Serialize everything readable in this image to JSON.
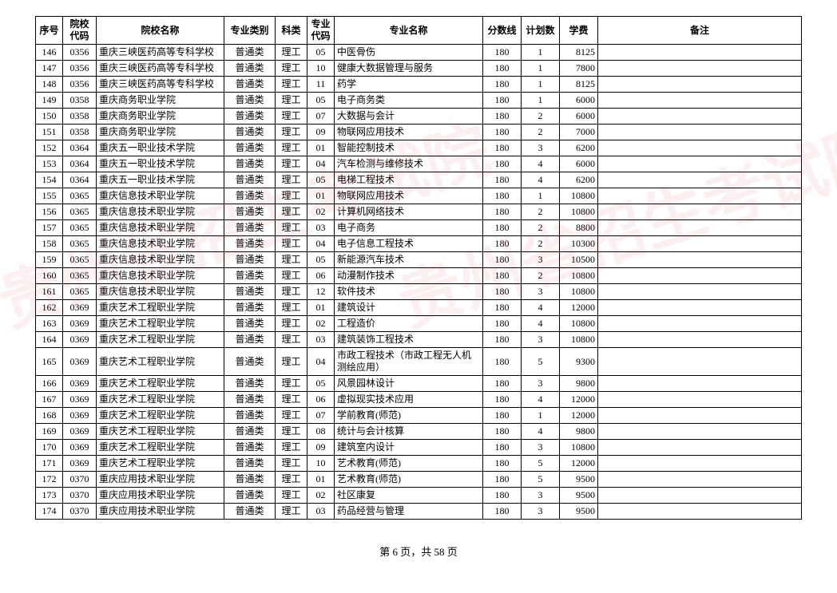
{
  "table": {
    "columns": [
      {
        "key": "seq",
        "label": "序号",
        "class": "col-seq",
        "align": "c"
      },
      {
        "key": "scode",
        "label": "院校\n代码",
        "class": "col-scode",
        "align": "c"
      },
      {
        "key": "sname",
        "label": "院校名称",
        "class": "col-sname",
        "align": "l"
      },
      {
        "key": "cat",
        "label": "专业类别",
        "class": "col-cat",
        "align": "c"
      },
      {
        "key": "sci",
        "label": "科类",
        "class": "col-sci",
        "align": "c"
      },
      {
        "key": "mcode",
        "label": "专业\n代码",
        "class": "col-mcode",
        "align": "c"
      },
      {
        "key": "mname",
        "label": "专业名称",
        "class": "col-mname",
        "align": "l"
      },
      {
        "key": "score",
        "label": "分数线",
        "class": "col-score",
        "align": "c"
      },
      {
        "key": "plan",
        "label": "计划数",
        "class": "col-plan",
        "align": "c"
      },
      {
        "key": "fee",
        "label": "学费",
        "class": "col-fee",
        "align": "r"
      },
      {
        "key": "note",
        "label": "备注",
        "class": "col-note",
        "align": "l"
      }
    ],
    "rows": [
      [
        "146",
        "0356",
        "重庆三峡医药高等专科学校",
        "普通类",
        "理工",
        "05",
        "中医骨伤",
        "180",
        "1",
        "8125",
        ""
      ],
      [
        "147",
        "0356",
        "重庆三峡医药高等专科学校",
        "普通类",
        "理工",
        "10",
        "健康大数据管理与服务",
        "180",
        "1",
        "7800",
        ""
      ],
      [
        "148",
        "0356",
        "重庆三峡医药高等专科学校",
        "普通类",
        "理工",
        "11",
        "药学",
        "180",
        "1",
        "8125",
        ""
      ],
      [
        "149",
        "0358",
        "重庆商务职业学院",
        "普通类",
        "理工",
        "05",
        "电子商务类",
        "180",
        "1",
        "6000",
        ""
      ],
      [
        "150",
        "0358",
        "重庆商务职业学院",
        "普通类",
        "理工",
        "07",
        "大数据与会计",
        "180",
        "2",
        "6000",
        ""
      ],
      [
        "151",
        "0358",
        "重庆商务职业学院",
        "普通类",
        "理工",
        "09",
        "物联网应用技术",
        "180",
        "2",
        "7000",
        ""
      ],
      [
        "152",
        "0364",
        "重庆五一职业技术学院",
        "普通类",
        "理工",
        "01",
        "智能控制技术",
        "180",
        "3",
        "6200",
        ""
      ],
      [
        "153",
        "0364",
        "重庆五一职业技术学院",
        "普通类",
        "理工",
        "04",
        "汽车检测与维修技术",
        "180",
        "4",
        "6000",
        ""
      ],
      [
        "154",
        "0364",
        "重庆五一职业技术学院",
        "普通类",
        "理工",
        "05",
        "电梯工程技术",
        "180",
        "4",
        "6200",
        ""
      ],
      [
        "155",
        "0365",
        "重庆信息技术职业学院",
        "普通类",
        "理工",
        "01",
        "物联网应用技术",
        "180",
        "1",
        "10800",
        ""
      ],
      [
        "156",
        "0365",
        "重庆信息技术职业学院",
        "普通类",
        "理工",
        "02",
        "计算机网络技术",
        "180",
        "2",
        "10800",
        ""
      ],
      [
        "157",
        "0365",
        "重庆信息技术职业学院",
        "普通类",
        "理工",
        "03",
        "电子商务",
        "180",
        "2",
        "8800",
        ""
      ],
      [
        "158",
        "0365",
        "重庆信息技术职业学院",
        "普通类",
        "理工",
        "04",
        "电子信息工程技术",
        "180",
        "2",
        "10300",
        ""
      ],
      [
        "159",
        "0365",
        "重庆信息技术职业学院",
        "普通类",
        "理工",
        "05",
        "新能源汽车技术",
        "180",
        "3",
        "10500",
        ""
      ],
      [
        "160",
        "0365",
        "重庆信息技术职业学院",
        "普通类",
        "理工",
        "06",
        "动漫制作技术",
        "180",
        "2",
        "10800",
        ""
      ],
      [
        "161",
        "0365",
        "重庆信息技术职业学院",
        "普通类",
        "理工",
        "12",
        "软件技术",
        "180",
        "3",
        "10800",
        ""
      ],
      [
        "162",
        "0369",
        "重庆艺术工程职业学院",
        "普通类",
        "理工",
        "01",
        "建筑设计",
        "180",
        "4",
        "12000",
        ""
      ],
      [
        "163",
        "0369",
        "重庆艺术工程职业学院",
        "普通类",
        "理工",
        "02",
        "工程造价",
        "180",
        "4",
        "10800",
        ""
      ],
      [
        "164",
        "0369",
        "重庆艺术工程职业学院",
        "普通类",
        "理工",
        "03",
        "建筑装饰工程技术",
        "180",
        "3",
        "10800",
        ""
      ],
      [
        "165",
        "0369",
        "重庆艺术工程职业学院",
        "普通类",
        "理工",
        "04",
        "市政工程技术（市政工程无人机测绘应用）",
        "180",
        "5",
        "9300",
        ""
      ],
      [
        "166",
        "0369",
        "重庆艺术工程职业学院",
        "普通类",
        "理工",
        "05",
        "风景园林设计",
        "180",
        "3",
        "9800",
        ""
      ],
      [
        "167",
        "0369",
        "重庆艺术工程职业学院",
        "普通类",
        "理工",
        "06",
        "虚拟现实技术应用",
        "180",
        "4",
        "12000",
        ""
      ],
      [
        "168",
        "0369",
        "重庆艺术工程职业学院",
        "普通类",
        "理工",
        "07",
        "学前教育(师范)",
        "180",
        "1",
        "12000",
        ""
      ],
      [
        "169",
        "0369",
        "重庆艺术工程职业学院",
        "普通类",
        "理工",
        "08",
        "统计与会计核算",
        "180",
        "4",
        "9800",
        ""
      ],
      [
        "170",
        "0369",
        "重庆艺术工程职业学院",
        "普通类",
        "理工",
        "09",
        "建筑室内设计",
        "180",
        "3",
        "10800",
        ""
      ],
      [
        "171",
        "0369",
        "重庆艺术工程职业学院",
        "普通类",
        "理工",
        "10",
        "艺术教育(师范)",
        "180",
        "5",
        "12000",
        ""
      ],
      [
        "172",
        "0370",
        "重庆应用技术职业学院",
        "普通类",
        "理工",
        "01",
        "艺术教育(师范)",
        "180",
        "5",
        "9500",
        ""
      ],
      [
        "173",
        "0370",
        "重庆应用技术职业学院",
        "普通类",
        "理工",
        "02",
        "社区康复",
        "180",
        "3",
        "9500",
        ""
      ],
      [
        "174",
        "0370",
        "重庆应用技术职业学院",
        "普通类",
        "理工",
        "03",
        "药品经营与管理",
        "180",
        "3",
        "9500",
        ""
      ]
    ],
    "border_color": "#000000",
    "background_color": "#ffffff",
    "font_family": "SimSun",
    "header_fontsize": 12,
    "cell_fontsize": 12
  },
  "footer": {
    "text": "第 6 页，共 58 页"
  },
  "watermark": {
    "text_left": "贵州省招生考试院",
    "text_right": "贵州省招生考试院",
    "color": "rgba(200,30,30,0.07)"
  }
}
